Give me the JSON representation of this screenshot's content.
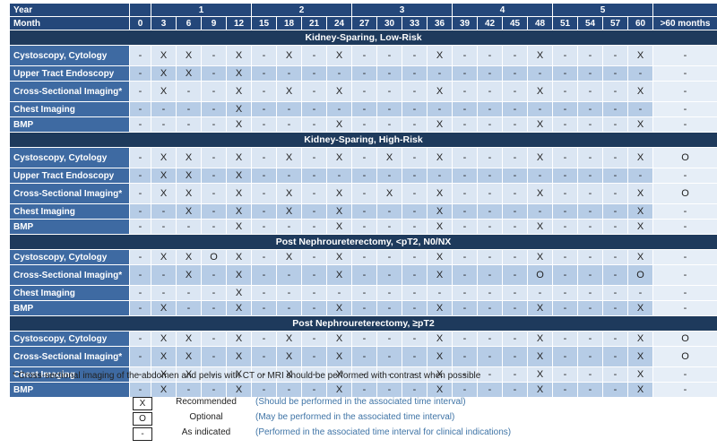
{
  "header": {
    "year_label": "Year",
    "month_label": "Month",
    "years": [
      "1",
      "2",
      "3",
      "4",
      "5"
    ],
    "months": [
      "0",
      "3",
      "6",
      "9",
      "12",
      "15",
      "18",
      "21",
      "24",
      "27",
      "30",
      "33",
      "36",
      "39",
      "42",
      "45",
      "48",
      "51",
      "54",
      "57",
      "60",
      ">60 months"
    ]
  },
  "sections": [
    {
      "title": "Kidney-Sparing, Low-Risk",
      "rows": [
        {
          "label": "Cystoscopy, Cytology",
          "cells": [
            "-",
            "X",
            "X",
            "-",
            "X",
            "-",
            "X",
            "-",
            "X",
            "-",
            "-",
            "-",
            "X",
            "-",
            "-",
            "-",
            "X",
            "-",
            "-",
            "-",
            "X",
            "-"
          ]
        },
        {
          "label": "Upper Tract Endoscopy",
          "cells": [
            "-",
            "X",
            "X",
            "-",
            "X",
            "-",
            "-",
            "-",
            "-",
            "-",
            "-",
            "-",
            "-",
            "-",
            "-",
            "-",
            "-",
            "-",
            "-",
            "-",
            "-",
            "-"
          ]
        },
        {
          "label": "Cross-Sectional Imaging*",
          "cells": [
            "-",
            "X",
            "-",
            "-",
            "X",
            "-",
            "X",
            "-",
            "X",
            "-",
            "-",
            "-",
            "X",
            "-",
            "-",
            "-",
            "X",
            "-",
            "-",
            "-",
            "X",
            "-"
          ]
        },
        {
          "label": "Chest Imaging",
          "cells": [
            "-",
            "-",
            "-",
            "-",
            "X",
            "-",
            "-",
            "-",
            "-",
            "-",
            "-",
            "-",
            "-",
            "-",
            "-",
            "-",
            "-",
            "-",
            "-",
            "-",
            "-",
            "-"
          ]
        },
        {
          "label": "BMP",
          "cells": [
            "-",
            "-",
            "-",
            "-",
            "X",
            "-",
            "-",
            "-",
            "X",
            "-",
            "-",
            "-",
            "X",
            "-",
            "-",
            "-",
            "X",
            "-",
            "-",
            "-",
            "X",
            "-"
          ]
        }
      ]
    },
    {
      "title": "Kidney-Sparing, High-Risk",
      "rows": [
        {
          "label": "Cystoscopy, Cytology",
          "cells": [
            "-",
            "X",
            "X",
            "-",
            "X",
            "-",
            "X",
            "-",
            "X",
            "-",
            "X",
            "-",
            "X",
            "-",
            "-",
            "-",
            "X",
            "-",
            "-",
            "-",
            "X",
            "O"
          ]
        },
        {
          "label": "Upper Tract Endoscopy",
          "cells": [
            "-",
            "X",
            "X",
            "-",
            "X",
            "-",
            "-",
            "-",
            "-",
            "-",
            "-",
            "-",
            "-",
            "-",
            "-",
            "-",
            "-",
            "-",
            "-",
            "-",
            "-",
            "-"
          ]
        },
        {
          "label": "Cross-Sectional Imaging*",
          "cells": [
            "-",
            "X",
            "X",
            "-",
            "X",
            "-",
            "X",
            "-",
            "X",
            "-",
            "X",
            "-",
            "X",
            "-",
            "-",
            "-",
            "X",
            "-",
            "-",
            "-",
            "X",
            "O"
          ]
        },
        {
          "label": "Chest Imaging",
          "cells": [
            "-",
            "-",
            "X",
            "-",
            "X",
            "-",
            "X",
            "-",
            "X",
            "-",
            "-",
            "-",
            "X",
            "-",
            "-",
            "-",
            "-",
            "-",
            "-",
            "-",
            "X",
            "-"
          ]
        },
        {
          "label": "BMP",
          "cells": [
            "-",
            "-",
            "-",
            "-",
            "X",
            "-",
            "-",
            "-",
            "X",
            "-",
            "-",
            "-",
            "X",
            "-",
            "-",
            "-",
            "X",
            "-",
            "-",
            "-",
            "X",
            "-"
          ]
        }
      ]
    },
    {
      "title": "Post Nephroureterectomy, <pT2, N0/NX",
      "rows": [
        {
          "label": "Cystoscopy, Cytology",
          "cells": [
            "-",
            "X",
            "X",
            "O",
            "X",
            "-",
            "X",
            "-",
            "X",
            "-",
            "-",
            "-",
            "X",
            "-",
            "-",
            "-",
            "X",
            "-",
            "-",
            "-",
            "X",
            "-"
          ]
        },
        {
          "label": "Cross-Sectional Imaging*",
          "cells": [
            "-",
            "-",
            "X",
            "-",
            "X",
            "-",
            "-",
            "-",
            "X",
            "-",
            "-",
            "-",
            "X",
            "-",
            "-",
            "-",
            "O",
            "-",
            "-",
            "-",
            "O",
            "-"
          ]
        },
        {
          "label": "Chest Imaging",
          "cells": [
            "-",
            "-",
            "-",
            "-",
            "X",
            "-",
            "-",
            "-",
            "-",
            "-",
            "-",
            "-",
            "-",
            "-",
            "-",
            "-",
            "-",
            "-",
            "-",
            "-",
            "-",
            "-"
          ]
        },
        {
          "label": "BMP",
          "cells": [
            "-",
            "X",
            "-",
            "-",
            "X",
            "-",
            "-",
            "-",
            "X",
            "-",
            "-",
            "-",
            "X",
            "-",
            "-",
            "-",
            "X",
            "-",
            "-",
            "-",
            "X",
            "-"
          ]
        }
      ]
    },
    {
      "title": "Post Nephroureterectomy, ≥pT2",
      "rows": [
        {
          "label": "Cystoscopy, Cytology",
          "cells": [
            "-",
            "X",
            "X",
            "-",
            "X",
            "-",
            "X",
            "-",
            "X",
            "-",
            "-",
            "-",
            "X",
            "-",
            "-",
            "-",
            "X",
            "-",
            "-",
            "-",
            "X",
            "O"
          ]
        },
        {
          "label": "Cross-Sectional Imaging*",
          "cells": [
            "-",
            "X",
            "X",
            "-",
            "X",
            "-",
            "X",
            "-",
            "X",
            "-",
            "-",
            "-",
            "X",
            "-",
            "-",
            "-",
            "X",
            "-",
            "-",
            "-",
            "X",
            "O"
          ]
        },
        {
          "label": "Chest Imaging",
          "cells": [
            "-",
            "X",
            "X",
            "-",
            "X",
            "-",
            "X",
            "-",
            "X",
            "-",
            "-",
            "-",
            "X",
            "-",
            "-",
            "-",
            "X",
            "-",
            "-",
            "-",
            "X",
            "-"
          ]
        },
        {
          "label": "BMP",
          "cells": [
            "-",
            "X",
            "-",
            "-",
            "X",
            "-",
            "-",
            "-",
            "X",
            "-",
            "-",
            "-",
            "X",
            "-",
            "-",
            "-",
            "X",
            "-",
            "-",
            "-",
            "X",
            "-"
          ]
        }
      ]
    }
  ],
  "footnote": "* Cross-sectional imaging of the abdomen and pelvis with CT or MRI should be performed with contrast when possible",
  "legend": [
    {
      "symbol": "X",
      "term": "Recommended",
      "desc": "(Should be performed in the associated time interval)"
    },
    {
      "symbol": "O",
      "term": "Optional",
      "desc": "(May be performed in the associated time interval)"
    },
    {
      "symbol": "-",
      "term": "As indicated",
      "desc": "(Performed in the associated time interval for clinical indications)"
    }
  ]
}
